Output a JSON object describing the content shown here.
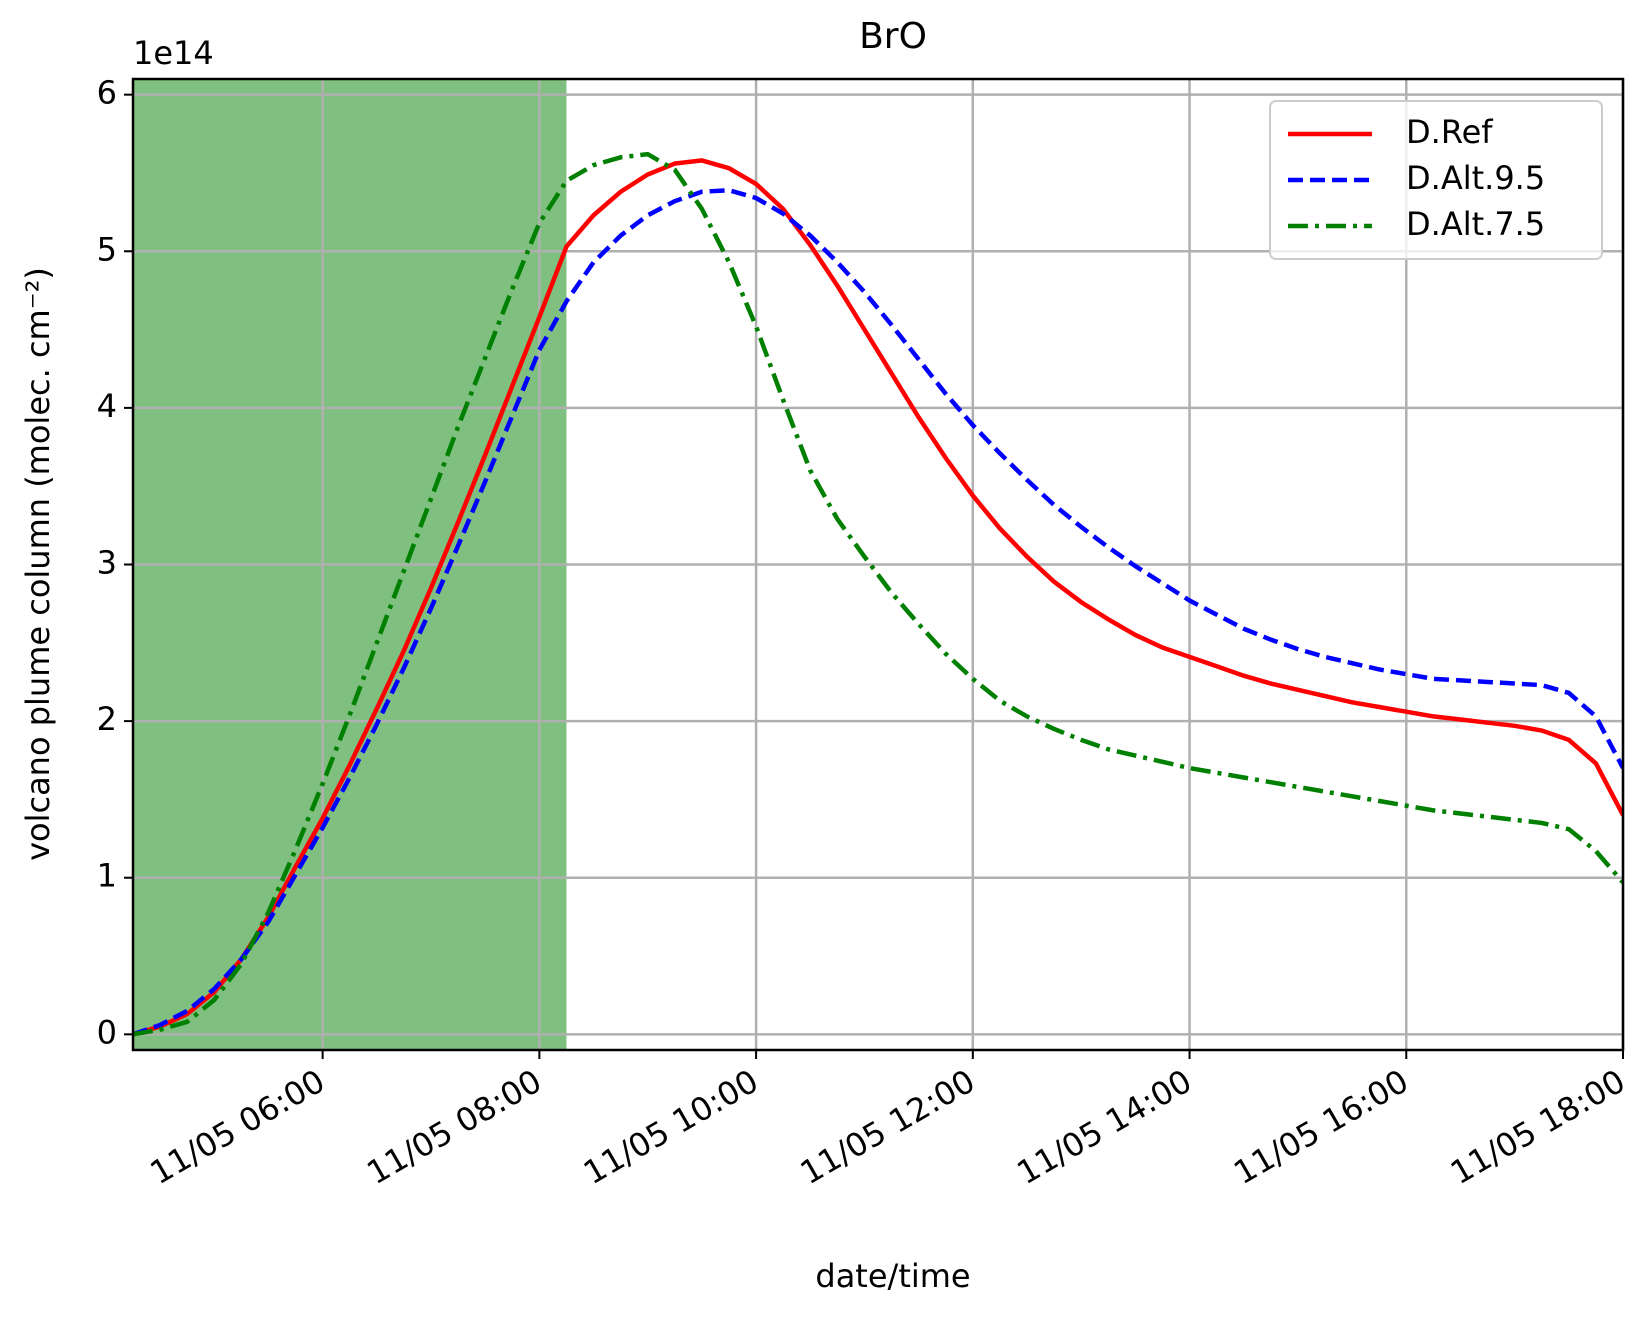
{
  "chart_data": {
    "type": "line",
    "title": "BrO",
    "x_label": "date/time",
    "y_label": "volcano plume column (molec. cm⁻²)",
    "y_offset_text": "1e14",
    "x": [
      "11/05 04:15",
      "11/05 04:30",
      "11/05 04:45",
      "11/05 05:00",
      "11/05 05:15",
      "11/05 05:30",
      "11/05 05:45",
      "11/05 06:00",
      "11/05 06:15",
      "11/05 06:30",
      "11/05 06:45",
      "11/05 07:00",
      "11/05 07:15",
      "11/05 07:30",
      "11/05 07:45",
      "11/05 08:00",
      "11/05 08:15",
      "11/05 08:30",
      "11/05 08:45",
      "11/05 09:00",
      "11/05 09:15",
      "11/05 09:30",
      "11/05 09:45",
      "11/05 10:00",
      "11/05 10:15",
      "11/05 10:30",
      "11/05 10:45",
      "11/05 11:00",
      "11/05 11:15",
      "11/05 11:30",
      "11/05 11:45",
      "11/05 12:00",
      "11/05 12:15",
      "11/05 12:30",
      "11/05 12:45",
      "11/05 13:00",
      "11/05 13:15",
      "11/05 13:30",
      "11/05 13:45",
      "11/05 14:00",
      "11/05 14:15",
      "11/05 14:30",
      "11/05 14:45",
      "11/05 15:00",
      "11/05 15:15",
      "11/05 15:30",
      "11/05 15:45",
      "11/05 16:00",
      "11/05 16:15",
      "11/05 16:30",
      "11/05 16:45",
      "11/05 17:00",
      "11/05 17:15",
      "11/05 17:30",
      "11/05 17:45",
      "11/05 18:00"
    ],
    "series": [
      {
        "name": "D.Ref",
        "color": "#ff0000",
        "dash": "solid",
        "values": [
          0.0,
          0.05,
          0.13,
          0.27,
          0.48,
          0.75,
          1.07,
          1.38,
          1.72,
          2.08,
          2.45,
          2.85,
          3.27,
          3.7,
          4.14,
          4.58,
          5.03,
          5.23,
          5.38,
          5.49,
          5.56,
          5.58,
          5.53,
          5.43,
          5.27,
          5.04,
          4.78,
          4.5,
          4.22,
          3.94,
          3.68,
          3.44,
          3.23,
          3.05,
          2.89,
          2.76,
          2.65,
          2.55,
          2.47,
          2.41,
          2.35,
          2.29,
          2.24,
          2.2,
          2.16,
          2.12,
          2.09,
          2.06,
          2.03,
          2.01,
          1.99,
          1.97,
          1.94,
          1.88,
          1.73,
          1.4
        ]
      },
      {
        "name": "D.Alt.9.5",
        "color": "#0000ff",
        "dash": "dashed",
        "values": [
          0.0,
          0.06,
          0.15,
          0.29,
          0.48,
          0.72,
          1.02,
          1.32,
          1.64,
          1.98,
          2.34,
          2.72,
          3.12,
          3.53,
          3.95,
          4.37,
          4.68,
          4.93,
          5.1,
          5.23,
          5.32,
          5.38,
          5.39,
          5.34,
          5.24,
          5.1,
          4.93,
          4.74,
          4.53,
          4.31,
          4.09,
          3.89,
          3.71,
          3.54,
          3.38,
          3.24,
          3.11,
          2.99,
          2.88,
          2.77,
          2.68,
          2.59,
          2.52,
          2.46,
          2.41,
          2.37,
          2.33,
          2.3,
          2.27,
          2.26,
          2.25,
          2.24,
          2.23,
          2.18,
          2.03,
          1.7
        ]
      },
      {
        "name": "D.Alt.7.5",
        "color": "#008000",
        "dash": "dashdot",
        "values": [
          0.0,
          0.03,
          0.08,
          0.22,
          0.45,
          0.78,
          1.18,
          1.6,
          2.04,
          2.5,
          2.96,
          3.42,
          3.88,
          4.32,
          4.76,
          5.18,
          5.45,
          5.55,
          5.6,
          5.62,
          5.52,
          5.27,
          4.93,
          4.52,
          4.05,
          3.6,
          3.29,
          3.05,
          2.82,
          2.62,
          2.43,
          2.27,
          2.13,
          2.03,
          1.95,
          1.88,
          1.82,
          1.78,
          1.74,
          1.7,
          1.67,
          1.64,
          1.61,
          1.58,
          1.55,
          1.52,
          1.49,
          1.46,
          1.43,
          1.41,
          1.39,
          1.37,
          1.35,
          1.31,
          1.17,
          0.97
        ]
      }
    ],
    "shaded_span": {
      "x": [
        "11/05 04:15",
        "11/05 08:15"
      ],
      "color": "#008000",
      "opacity": 0.5
    },
    "xlim": [
      "11/05 04:15",
      "11/05 18:00"
    ],
    "xticks": [
      "11/05 06:00",
      "11/05 08:00",
      "11/05 10:00",
      "11/05 12:00",
      "11/05 14:00",
      "11/05 16:00",
      "11/05 18:00"
    ],
    "ylim": [
      -0.1,
      6.1
    ],
    "yticks": [
      0,
      1,
      2,
      3,
      4,
      5,
      6
    ],
    "grid": true,
    "legend": "upper right"
  }
}
